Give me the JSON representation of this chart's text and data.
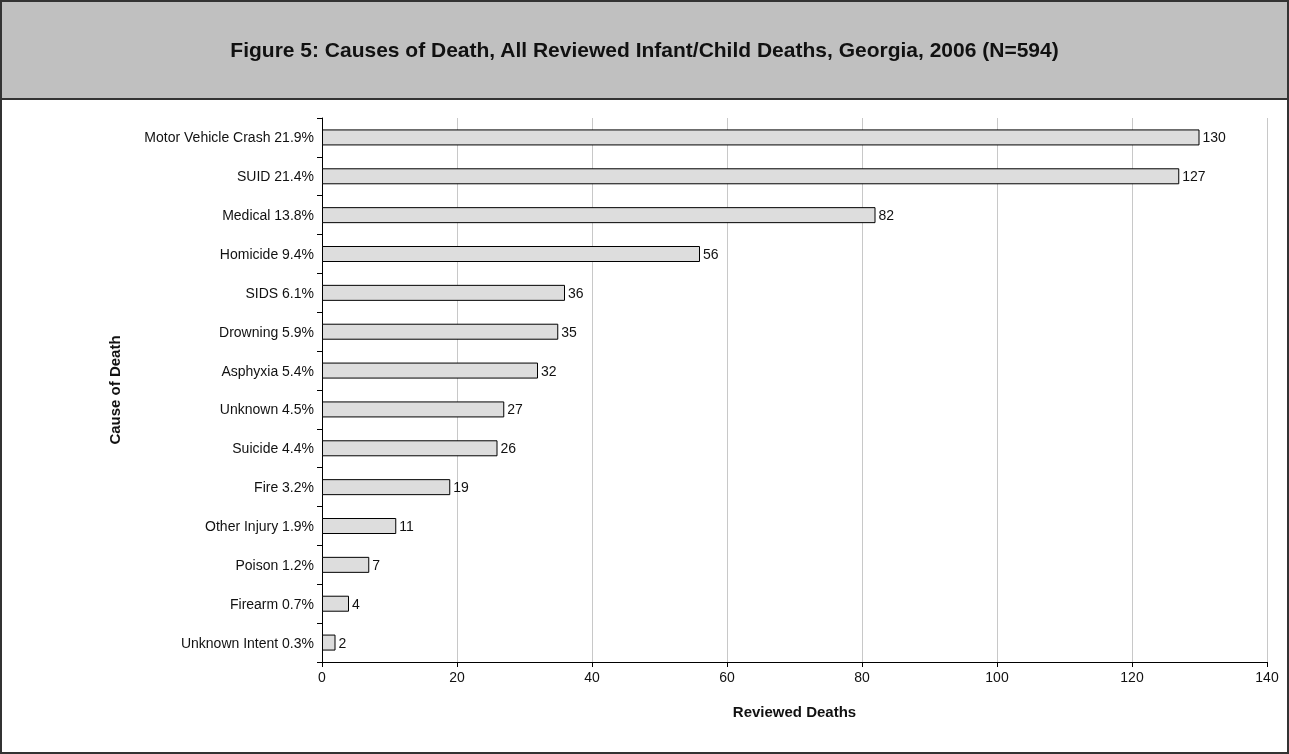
{
  "chart_data": {
    "type": "bar",
    "orientation": "horizontal",
    "title": "Figure 5: Causes of Death, All Reviewed Infant/Child Deaths, Georgia, 2006 (N=594)",
    "xlabel": "Reviewed Deaths",
    "ylabel": "Cause of Death",
    "categories": [
      "Motor Vehicle Crash 21.9%",
      "SUID 21.4%",
      "Medical 13.8%",
      "Homicide 9.4%",
      "SIDS 6.1%",
      "Drowning 5.9%",
      "Asphyxia 5.4%",
      "Unknown 4.5%",
      "Suicide 4.4%",
      "Fire 3.2%",
      "Other Injury 1.9%",
      "Poison 1.2%",
      "Firearm 0.7%",
      "Unknown Intent 0.3%"
    ],
    "values": [
      130,
      127,
      82,
      56,
      36,
      35,
      32,
      27,
      26,
      19,
      11,
      7,
      4,
      2
    ],
    "color": "#dddddd",
    "xlim": [
      0,
      140
    ],
    "xticks": [
      0,
      20,
      40,
      60,
      80,
      100,
      120,
      140
    ],
    "grid": "x",
    "data_labels": true
  }
}
